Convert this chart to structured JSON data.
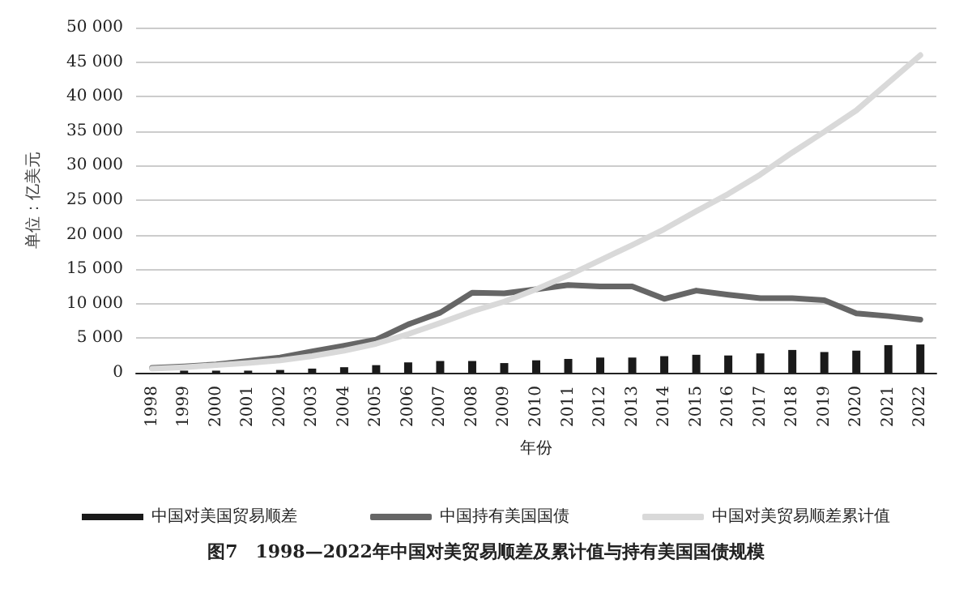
{
  "chart_data": {
    "type": "bar",
    "title": "图7　1998—2022年中国对美贸易顺差及累计值与持有美国国债规模",
    "xlabel": "年份",
    "ylabel": "单位：亿美元",
    "categories": [
      "1998",
      "1999",
      "2000",
      "2001",
      "2002",
      "2003",
      "2004",
      "2005",
      "2006",
      "2007",
      "2008",
      "2009",
      "2010",
      "2011",
      "2012",
      "2013",
      "2014",
      "2015",
      "2016",
      "2017",
      "2018",
      "2019",
      "2020",
      "2021",
      "2022"
    ],
    "series": [
      {
        "name": "中国对美国贸易顺差",
        "color": "#1a1a1a",
        "values": [
          null,
          300,
          300,
          300,
          400,
          600,
          800,
          1100,
          1500,
          1700,
          1700,
          1400,
          1800,
          2000,
          2200,
          2200,
          2400,
          2600,
          2500,
          2800,
          3300,
          3000,
          3200,
          4000,
          4100
        ]
      },
      {
        "name": "中国持有美国国债",
        "type": "line",
        "color": "#666666",
        "values": [
          700,
          900,
          1200,
          1700,
          2200,
          3100,
          3900,
          4800,
          7000,
          8700,
          11600,
          11500,
          12100,
          12700,
          12500,
          12500,
          10700,
          11900,
          11300,
          10800,
          10800,
          10500,
          8600,
          8200,
          7700
        ]
      },
      {
        "name": "中国对美贸易顺差累计值",
        "type": "line",
        "color": "#d9d9d9",
        "values": [
          600,
          800,
          1100,
          1400,
          1800,
          2400,
          3200,
          4200,
          5600,
          7200,
          8900,
          10300,
          12100,
          14100,
          16300,
          18500,
          20800,
          23400,
          25900,
          28700,
          31900,
          34900,
          38000,
          42000,
          46000
        ]
      }
    ],
    "ylim": [
      0,
      50000
    ],
    "yticks": [
      0,
      {
        "value": 5000,
        "label": "5 000"
      },
      {
        "value": 10000,
        "label": "10 000"
      },
      {
        "value": 15000,
        "label": "15 000"
      },
      {
        "value": 20000,
        "label": "20 000"
      },
      {
        "value": 25000,
        "label": "25 000"
      },
      {
        "value": 30000,
        "label": "30 000"
      },
      {
        "value": 35000,
        "label": "35 000"
      },
      {
        "value": 40000,
        "label": "40 000"
      },
      {
        "value": 45000,
        "label": "45 000"
      },
      {
        "value": 50000,
        "label": "50 000"
      }
    ],
    "grid": "y",
    "legend": "bottom",
    "marker": "none",
    "line_style": "solid"
  }
}
